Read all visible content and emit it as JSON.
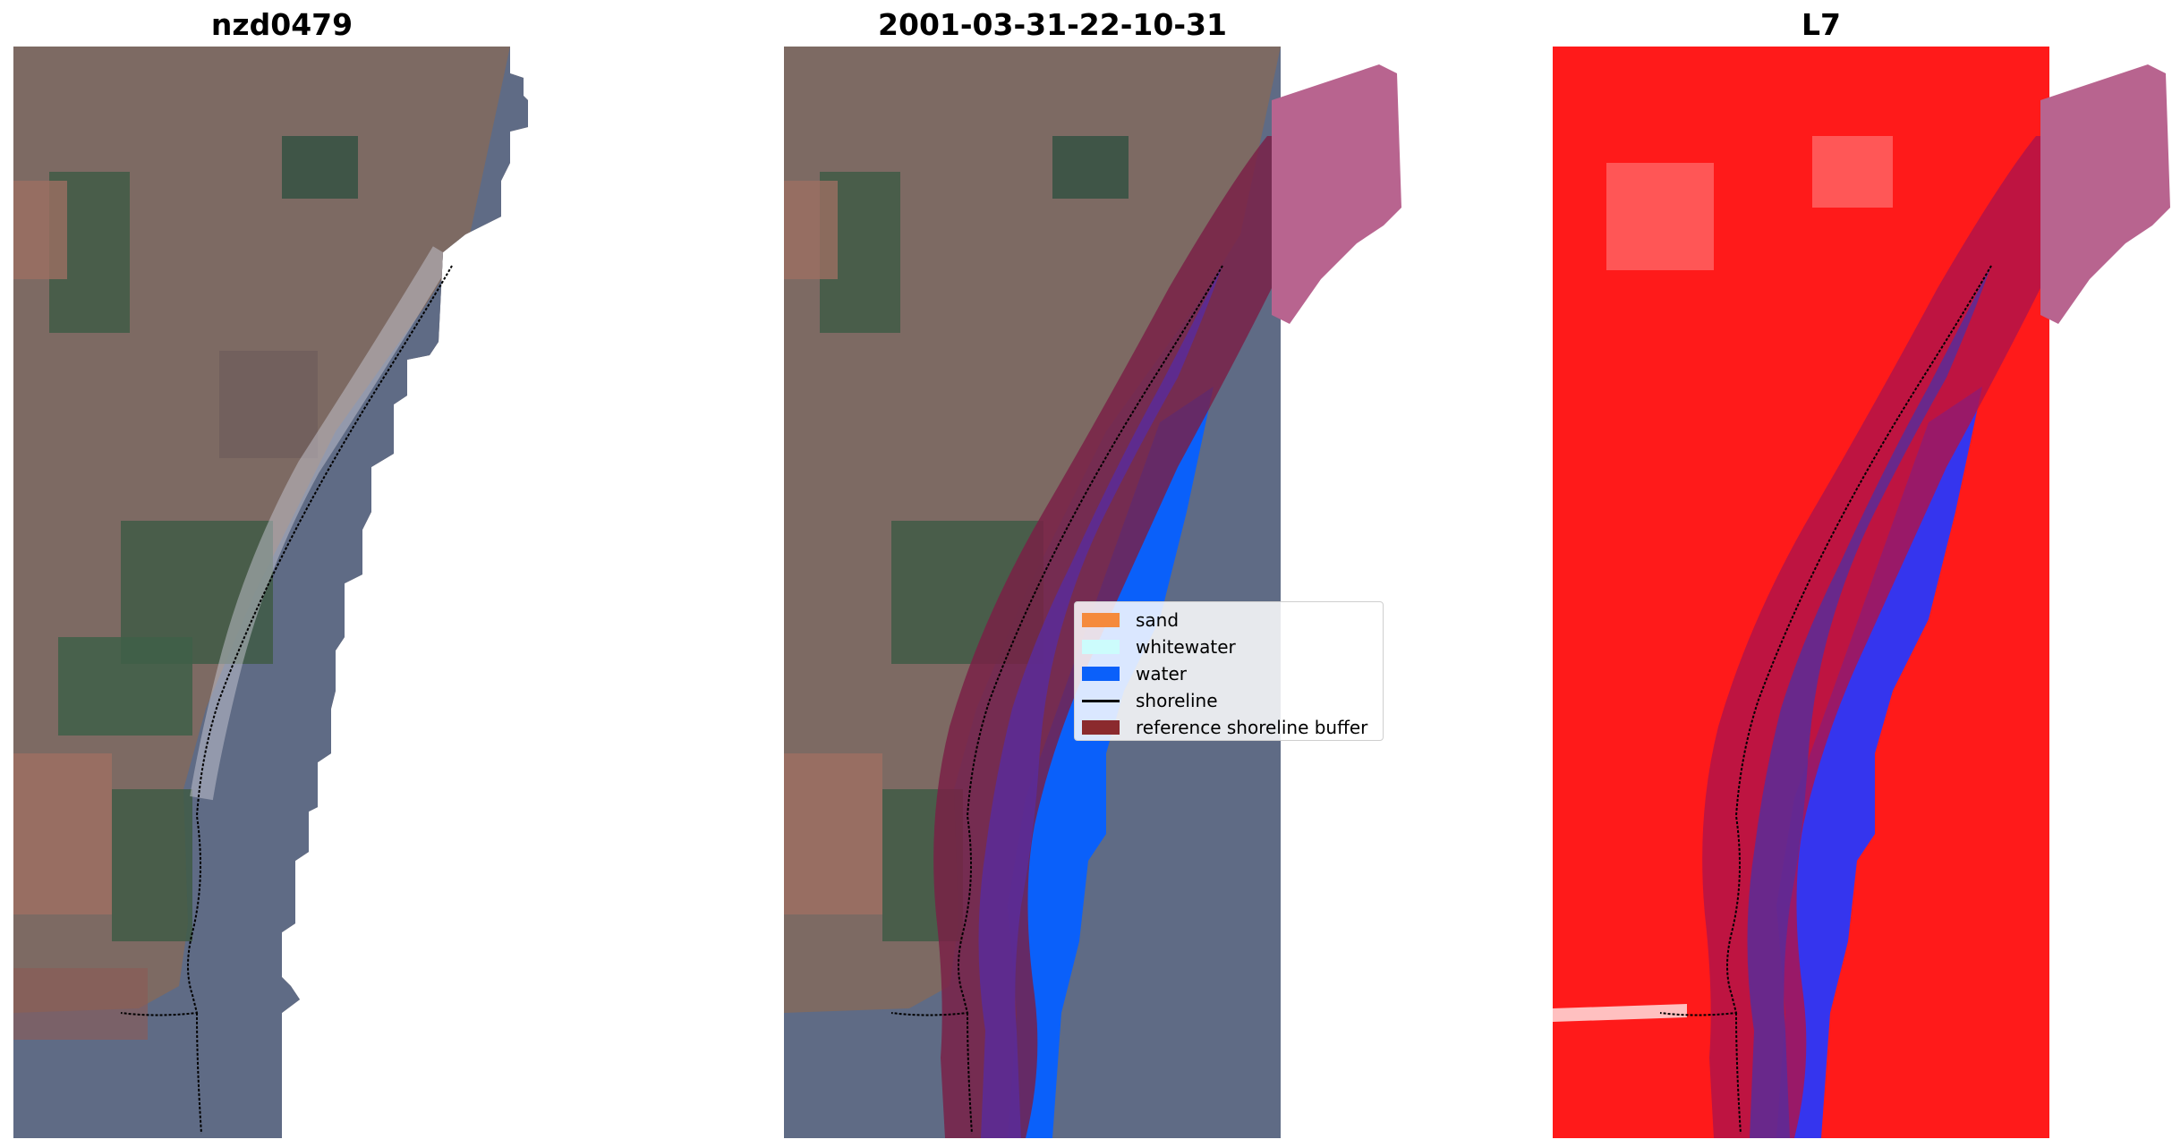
{
  "panels": [
    {
      "title": "nzd0479"
    },
    {
      "title": "2001-03-31-22-10-31"
    },
    {
      "title": "L7"
    }
  ],
  "legend": {
    "items": [
      {
        "label": "sand",
        "color": "#f58a3c",
        "kind": "patch"
      },
      {
        "label": "whitewater",
        "color": "#ccfcfc",
        "kind": "patch"
      },
      {
        "label": "water",
        "color": "#0a60fa",
        "kind": "patch"
      },
      {
        "label": "shoreline",
        "color": "#000000",
        "kind": "line"
      },
      {
        "label": "reference shoreline buffer",
        "color": "#8b2a2e",
        "kind": "patch"
      }
    ]
  },
  "colors": {
    "land_base": "#7d6a63",
    "field_green": "#3f5a45",
    "field_pink": "#9c6f62",
    "sea_grey": "#5f6b85",
    "water_blue": "#0a60fa",
    "buffer": "#7a1f45",
    "buffer_pink": "#b8648f",
    "sand_purple": "#5a2c99",
    "l7_red": "#ff1a1a",
    "l7_blue": "#3535ee"
  }
}
